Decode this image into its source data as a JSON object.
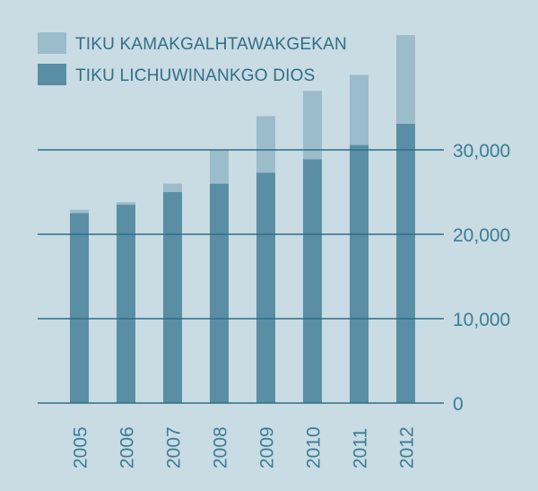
{
  "chart_data": {
    "type": "bar",
    "stacked": true,
    "categories": [
      "2005",
      "2006",
      "2007",
      "2008",
      "2009",
      "2010",
      "2011",
      "2012"
    ],
    "series": [
      {
        "name": "TIKU LICHUWINANKGO DIOS",
        "values": [
          22500,
          23500,
          25000,
          26000,
          27300,
          28900,
          30600,
          33100
        ],
        "color": "#5a8ea4"
      },
      {
        "name": "TIKU KAMAKGALHTAWAKGEKAN",
        "values": [
          400,
          300,
          1000,
          4000,
          6700,
          8100,
          8300,
          10500
        ],
        "color": "#9bbccb"
      }
    ],
    "yticks": [
      "0",
      "10,000",
      "20,000",
      "30,000"
    ],
    "ylim": [
      0,
      44000
    ],
    "grid": true,
    "legend": "top-left",
    "colors": {
      "background": "#c9dbe3",
      "gridline": "#2f6f88",
      "text": "#3a7d96"
    }
  }
}
